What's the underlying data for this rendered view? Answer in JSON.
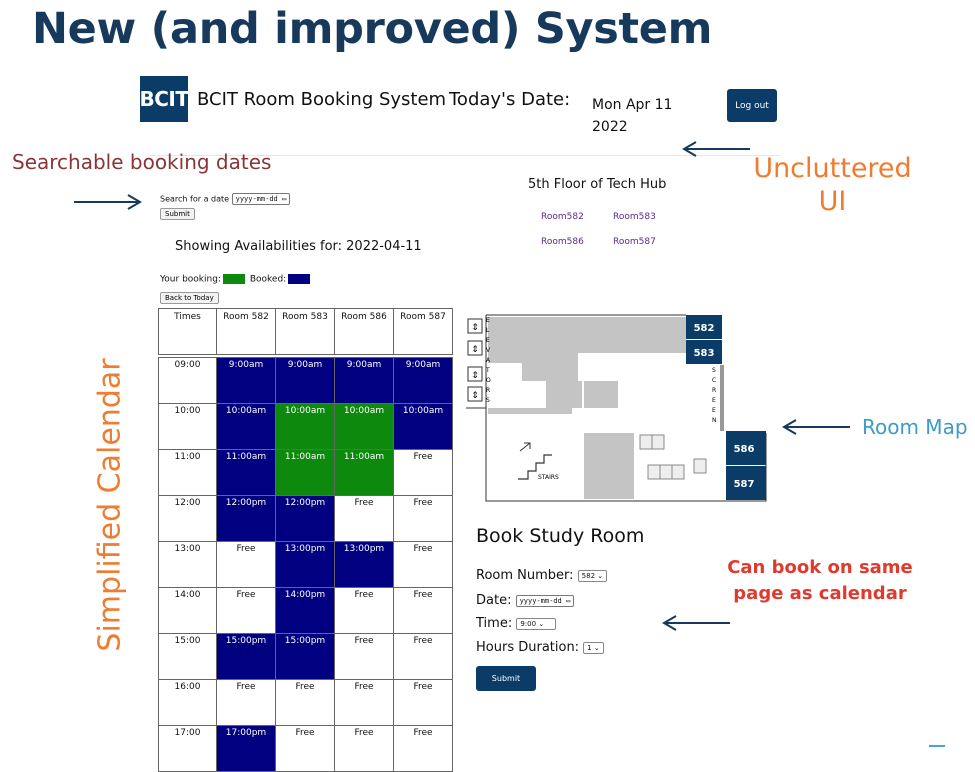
{
  "slide_title": "New (and improved) System",
  "header": {
    "logo_text": "BCIT",
    "title": "BCIT Room Booking System",
    "today_label": "Today's Date:",
    "today_date": "Mon Apr 11 2022",
    "logout_label": "Log out"
  },
  "annotations": {
    "searchable": "Searchable booking dates",
    "uncluttered": "Uncluttered UI",
    "calendar": "Simplified Calendar",
    "room_map": "Room Map",
    "book_same_page": "Can book on same page as calendar"
  },
  "search": {
    "label": "Search for a date",
    "placeholder": "yyyy-mm-dd",
    "submit_label": "Submit"
  },
  "showing": "Showing Availabilities for: 2022-04-11",
  "legend": {
    "yours_label": "Your booking:",
    "booked_label": "Booked:",
    "yours_color": "#0d8a0d",
    "booked_color": "#000080"
  },
  "back_today_label": "Back to Today",
  "calendar": {
    "headers": [
      "Times",
      "Room 582",
      "Room 583",
      "Room 586",
      "Room 587"
    ],
    "rows": [
      {
        "time": "09:00",
        "cells": [
          {
            "t": "9:00am",
            "s": "booked"
          },
          {
            "t": "9:00am",
            "s": "booked"
          },
          {
            "t": "9:00am",
            "s": "booked"
          },
          {
            "t": "9:00am",
            "s": "booked"
          }
        ]
      },
      {
        "time": "10:00",
        "cells": [
          {
            "t": "10:00am",
            "s": "booked"
          },
          {
            "t": "10:00am",
            "s": "yours"
          },
          {
            "t": "10:00am",
            "s": "yours"
          },
          {
            "t": "10:00am",
            "s": "booked"
          }
        ]
      },
      {
        "time": "11:00",
        "cells": [
          {
            "t": "11:00am",
            "s": "booked"
          },
          {
            "t": "11:00am",
            "s": "yours"
          },
          {
            "t": "11:00am",
            "s": "yours"
          },
          {
            "t": "Free",
            "s": "free"
          }
        ]
      },
      {
        "time": "12:00",
        "cells": [
          {
            "t": "12:00pm",
            "s": "booked"
          },
          {
            "t": "12:00pm",
            "s": "booked"
          },
          {
            "t": "Free",
            "s": "free"
          },
          {
            "t": "Free",
            "s": "free"
          }
        ]
      },
      {
        "time": "13:00",
        "cells": [
          {
            "t": "Free",
            "s": "free"
          },
          {
            "t": "13:00pm",
            "s": "booked"
          },
          {
            "t": "13:00pm",
            "s": "booked"
          },
          {
            "t": "Free",
            "s": "free"
          }
        ]
      },
      {
        "time": "14:00",
        "cells": [
          {
            "t": "Free",
            "s": "free"
          },
          {
            "t": "14:00pm",
            "s": "booked"
          },
          {
            "t": "Free",
            "s": "free"
          },
          {
            "t": "Free",
            "s": "free"
          }
        ]
      },
      {
        "time": "15:00",
        "cells": [
          {
            "t": "15:00pm",
            "s": "booked"
          },
          {
            "t": "15:00pm",
            "s": "booked"
          },
          {
            "t": "Free",
            "s": "free"
          },
          {
            "t": "Free",
            "s": "free"
          }
        ]
      },
      {
        "time": "16:00",
        "cells": [
          {
            "t": "Free",
            "s": "free"
          },
          {
            "t": "Free",
            "s": "free"
          },
          {
            "t": "Free",
            "s": "free"
          },
          {
            "t": "Free",
            "s": "free"
          }
        ]
      },
      {
        "time": "17:00",
        "cells": [
          {
            "t": "17:00pm",
            "s": "booked"
          },
          {
            "t": "Free",
            "s": "free"
          },
          {
            "t": "Free",
            "s": "free"
          },
          {
            "t": "Free",
            "s": "free"
          }
        ]
      }
    ]
  },
  "floor": {
    "title": "5th Floor of Tech Hub",
    "rooms": [
      "Room582",
      "Room583",
      "Room586",
      "Room587"
    ]
  },
  "map": {
    "rooms": [
      "582",
      "583",
      "586",
      "587"
    ],
    "elevators_text": "ELEVATORS",
    "screen_text": "SCREEN",
    "stairs_text": "STAIRS",
    "room_color": "#0b3c68"
  },
  "booking": {
    "title": "Book Study Room",
    "room_label": "Room Number:",
    "room_value": "582",
    "date_label": "Date:",
    "date_placeholder": "yyyy-mm-dd",
    "time_label": "Time:",
    "time_value": "9:00",
    "duration_label": "Hours Duration:",
    "duration_value": "1",
    "submit_label": "Submit"
  }
}
